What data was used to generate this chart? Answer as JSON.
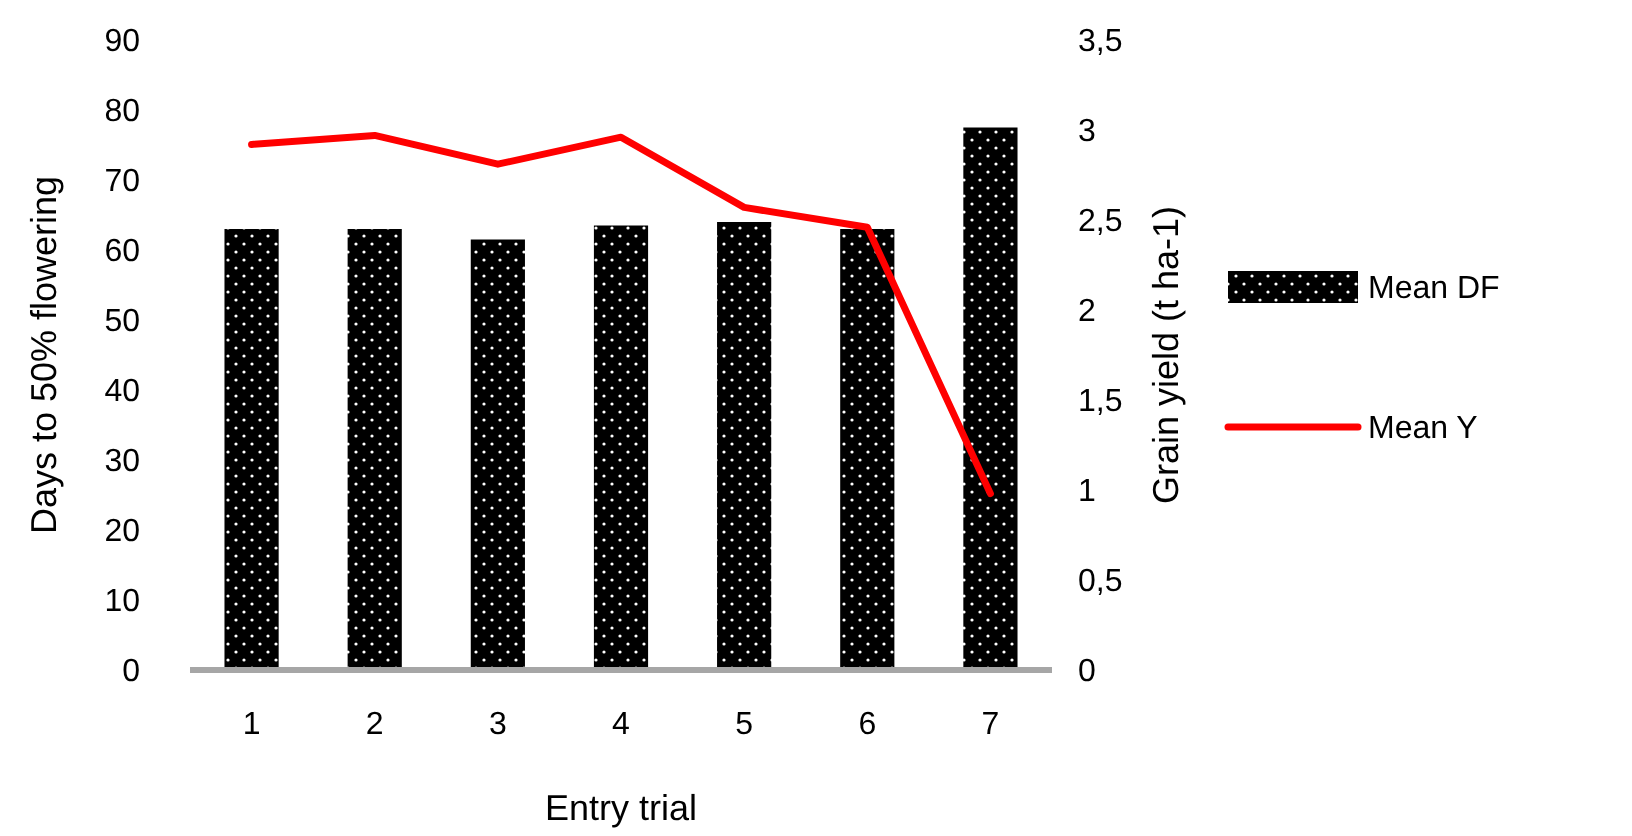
{
  "chart_data": {
    "type": "bar",
    "xlabel": "Entry trial",
    "ylabel": "Days to 50% flowering",
    "y2label": "Grain yield (t ha-1)",
    "categories": [
      "1",
      "2",
      "3",
      "4",
      "5",
      "6",
      "7"
    ],
    "series": [
      {
        "name": "Mean DF",
        "color": "#000000",
        "values": [
          63,
          63,
          61.5,
          63.5,
          64,
          63,
          77.5
        ]
      },
      {
        "name": "Mean Y",
        "type": "line",
        "axis": "y2",
        "color": "#ff0000",
        "marker": "none",
        "values": [
          2.92,
          2.97,
          2.81,
          2.96,
          2.57,
          2.46,
          0.98
        ]
      }
    ],
    "ylim": [
      0,
      90
    ],
    "yticks": [
      0,
      10,
      20,
      30,
      40,
      50,
      60,
      70,
      80,
      90
    ],
    "y2lim": [
      0,
      3.5
    ],
    "y2ticks": [
      0,
      {
        "value": 0.5,
        "label": "0,5"
      },
      1,
      {
        "value": 1.5,
        "label": "1,5"
      },
      2,
      {
        "value": 2.5,
        "label": "2,5"
      },
      3,
      {
        "value": 3.5,
        "label": "3,5"
      }
    ],
    "grid": false,
    "legend": "right"
  }
}
